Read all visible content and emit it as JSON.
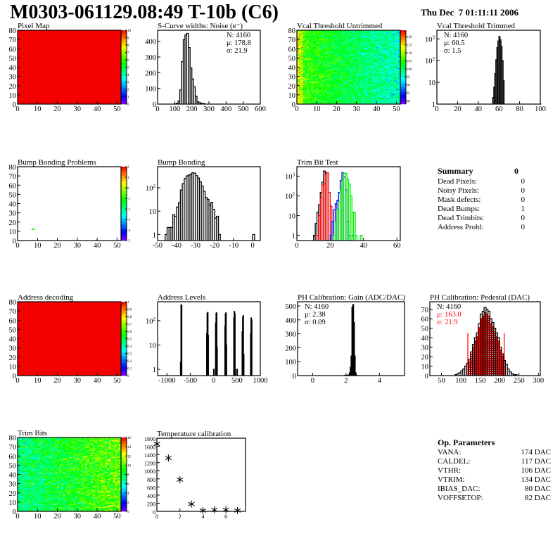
{
  "header": {
    "title": "M0303-061129.08:49 T-10b (C6)",
    "date": "Thu Dec  7 01:11:11 2006"
  },
  "summary": {
    "title": "Summary",
    "total": "0",
    "rows": [
      {
        "label": "Dead Pixels:",
        "value": "0"
      },
      {
        "label": "Noisy Pixels:",
        "value": "0"
      },
      {
        "label": "Mask defects:",
        "value": "0"
      },
      {
        "label": "Dead Bumps:",
        "value": "1"
      },
      {
        "label": "Dead Trimbits:",
        "value": "0"
      },
      {
        "label": "Address Probl:",
        "value": "0"
      }
    ]
  },
  "op_parameters": {
    "title": "Op. Parameters",
    "rows": [
      {
        "label": "VANA:",
        "value": "174 DAC"
      },
      {
        "label": "CALDEL:",
        "value": "117 DAC"
      },
      {
        "label": "VTHR:",
        "value": "106 DAC"
      },
      {
        "label": "VTRIM:",
        "value": "134 DAC"
      },
      {
        "label": "IBIAS_DAC:",
        "value": "80 DAC"
      },
      {
        "label": "VOFFSETOP:",
        "value": "82 DAC"
      }
    ]
  },
  "colors": {
    "palette": "rainbow",
    "trim_series": [
      "#000000",
      "#ff0000",
      "#0000ff",
      "#00ee00"
    ],
    "highlight": "#ff0000"
  },
  "chart_data": [
    {
      "type": "heatmap",
      "title": "Pixel Map",
      "xlim": [
        0,
        52
      ],
      "ylim": [
        0,
        80
      ],
      "zlim": [
        0,
        10
      ],
      "z_uniform": 10,
      "xticks": [
        "0",
        "10",
        "20",
        "30",
        "40",
        "50"
      ],
      "yticks": [
        "0",
        "10",
        "20",
        "30",
        "40",
        "50",
        "60",
        "70",
        "80"
      ],
      "zticks": [
        "0",
        "1",
        "2",
        "3",
        "4",
        "5",
        "6",
        "7",
        "8",
        "9",
        "10"
      ]
    },
    {
      "type": "bar",
      "title": "S-Curve widths: Noise (e⁻)",
      "xlim": [
        0,
        600
      ],
      "ylim": [
        0,
        470
      ],
      "bin_width": 10,
      "xticks": [
        "0",
        "100",
        "200",
        "300",
        "400",
        "500",
        "600"
      ],
      "yticks": [
        "0",
        "100",
        "200",
        "300",
        "400"
      ],
      "stats": [
        "N: 4160",
        "μ: 178.8",
        "σ: 21.9"
      ],
      "stats_pos": "top-right",
      "bins": [
        [
          100,
          2
        ],
        [
          110,
          5
        ],
        [
          120,
          20
        ],
        [
          130,
          90
        ],
        [
          140,
          270
        ],
        [
          150,
          410
        ],
        [
          160,
          440
        ],
        [
          170,
          450
        ],
        [
          180,
          360
        ],
        [
          190,
          230
        ],
        [
          200,
          160
        ],
        [
          210,
          110
        ],
        [
          220,
          50
        ],
        [
          230,
          15
        ],
        [
          240,
          10
        ],
        [
          250,
          5
        ],
        [
          260,
          3
        ],
        [
          270,
          2
        ]
      ]
    },
    {
      "type": "heatmap",
      "title": "Vcal Threshold Untrimmed",
      "xlim": [
        0,
        52
      ],
      "ylim": [
        0,
        80
      ],
      "zlim": [
        78,
        124
      ],
      "xticks": [
        "0",
        "10",
        "20",
        "30",
        "40",
        "50"
      ],
      "yticks": [
        "0",
        "10",
        "20",
        "30",
        "40",
        "50",
        "60",
        "70",
        "80"
      ],
      "zticks": [
        "80",
        "85",
        "90",
        "95",
        "100",
        "105",
        "110",
        "115",
        "120"
      ]
    },
    {
      "type": "bar",
      "title": "Vcal Threshold Trimmed",
      "xlim": [
        0,
        100
      ],
      "ylim": [
        1,
        2500
      ],
      "log_y": true,
      "bin_width": 1,
      "xticks": [
        "0",
        "20",
        "40",
        "60",
        "80",
        "100"
      ],
      "yticks": [
        "1",
        "10",
        "10^2",
        "10^3"
      ],
      "stats": [
        "N: 4160",
        "μ: 60.5",
        "σ:  1.5"
      ],
      "stats_pos": "top-left",
      "bins": [
        [
          54,
          2
        ],
        [
          55,
          6
        ],
        [
          56,
          25
        ],
        [
          57,
          110
        ],
        [
          58,
          400
        ],
        [
          59,
          800
        ],
        [
          60,
          1300
        ],
        [
          61,
          900
        ],
        [
          62,
          450
        ],
        [
          63,
          100
        ],
        [
          64,
          12
        ],
        [
          100,
          1
        ]
      ]
    },
    {
      "type": "heatmap",
      "title": "Bump Bonding Problems",
      "xlim": [
        0,
        52
      ],
      "ylim": [
        0,
        80
      ],
      "zlim": [
        -5,
        2
      ],
      "xticks": [
        "0",
        "10",
        "20",
        "30",
        "40",
        "50"
      ],
      "yticks": [
        "0",
        "10",
        "20",
        "30",
        "40",
        "50",
        "60",
        "70",
        "80"
      ],
      "zticks": [
        "-5",
        "-4",
        "-3",
        "-2",
        "-1",
        "0",
        "1",
        "2"
      ],
      "cells": [
        [
          7,
          12,
          -1
        ]
      ]
    },
    {
      "type": "bar",
      "title": "Bump Bonding",
      "xlim": [
        -50,
        4
      ],
      "ylim": [
        0.55,
        800
      ],
      "log_y": true,
      "bin_width": 1,
      "xticks": [
        "-50",
        "-40",
        "-30",
        "-20",
        "-10",
        "0"
      ],
      "yticks": [
        "1",
        "10",
        "10^2"
      ],
      "bins": [
        [
          -46,
          1
        ],
        [
          -45,
          2
        ],
        [
          -44,
          2
        ],
        [
          -43,
          2
        ],
        [
          -42,
          7
        ],
        [
          -41,
          6
        ],
        [
          -40,
          15
        ],
        [
          -39,
          23
        ],
        [
          -38,
          80
        ],
        [
          -37,
          150
        ],
        [
          -36,
          250
        ],
        [
          -35,
          320
        ],
        [
          -34,
          350
        ],
        [
          -33,
          380
        ],
        [
          -32,
          440
        ],
        [
          -31,
          420
        ],
        [
          -30,
          330
        ],
        [
          -29,
          260
        ],
        [
          -28,
          180
        ],
        [
          -27,
          120
        ],
        [
          -26,
          70
        ],
        [
          -25,
          38
        ],
        [
          -24,
          32
        ],
        [
          -23,
          18
        ],
        [
          -22,
          24
        ],
        [
          -21,
          12
        ],
        [
          -20,
          5
        ],
        [
          -19,
          6
        ],
        [
          -18,
          1
        ],
        [
          0,
          1
        ]
      ]
    },
    {
      "type": "bar",
      "title": "Trim Bit Test",
      "xlim": [
        0,
        62
      ],
      "ylim": [
        0.55,
        3000
      ],
      "log_y": true,
      "bin_width": 1,
      "xticks": [
        "0",
        "20",
        "40",
        "60"
      ],
      "yticks": [
        "1",
        "10",
        "10^2",
        "10^3"
      ],
      "series": [
        {
          "bins": [
            [
              10,
              1
            ],
            [
              11,
              4
            ],
            [
              12,
              15
            ],
            [
              13,
              35
            ],
            [
              14,
              150
            ],
            [
              15,
              500
            ],
            [
              16,
              1800
            ],
            [
              17,
              1500
            ],
            [
              18,
              0
            ]
          ]
        },
        {
          "bins": [
            [
              12,
              1
            ],
            [
              13,
              10
            ],
            [
              14,
              80
            ],
            [
              15,
              350
            ],
            [
              16,
              400
            ],
            [
              17,
              1200
            ],
            [
              18,
              1500
            ],
            [
              19,
              150
            ],
            [
              20,
              30
            ],
            [
              21,
              5
            ]
          ]
        },
        {
          "bins": [
            [
              20,
              1
            ],
            [
              21,
              5
            ],
            [
              22,
              20
            ],
            [
              23,
              40
            ],
            [
              24,
              60
            ],
            [
              25,
              150
            ],
            [
              26,
              600
            ],
            [
              27,
              1500
            ],
            [
              28,
              900
            ],
            [
              29,
              200
            ],
            [
              30,
              5
            ],
            [
              31,
              1
            ],
            [
              32,
              0
            ],
            [
              33,
              1
            ]
          ]
        },
        {
          "bins": [
            [
              22,
              1
            ],
            [
              23,
              5
            ],
            [
              24,
              20
            ],
            [
              25,
              50
            ],
            [
              26,
              200
            ],
            [
              27,
              600
            ],
            [
              28,
              1400
            ],
            [
              29,
              1400
            ],
            [
              30,
              700
            ],
            [
              31,
              400
            ],
            [
              32,
              100
            ],
            [
              33,
              15
            ],
            [
              34,
              15
            ],
            [
              35,
              1
            ],
            [
              38,
              1
            ]
          ]
        }
      ]
    },
    {
      "type": "heatmap",
      "title": "Address decoding",
      "xlim": [
        0,
        52
      ],
      "ylim": [
        0,
        80
      ],
      "zlim": [
        0,
        1
      ],
      "z_uniform": 1,
      "xticks": [
        "0",
        "10",
        "20",
        "30",
        "40",
        "50"
      ],
      "yticks": [
        "0",
        "10",
        "20",
        "30",
        "40",
        "50",
        "60",
        "70",
        "80"
      ],
      "zticks": [
        "0",
        "0.1",
        "0.2",
        "0.3",
        "0.4",
        "0.5",
        "0.6",
        "0.7",
        "0.8",
        "0.9",
        "1"
      ]
    },
    {
      "type": "bar",
      "title": "Address Levels",
      "xlim": [
        -1200,
        1000
      ],
      "ylim": [
        0.55,
        600
      ],
      "log_y": true,
      "bin_width": 10,
      "xticks": [
        "-1000",
        "-500",
        "0",
        "500",
        "1000"
      ],
      "yticks": [
        "1",
        "10",
        "10^2"
      ],
      "bins": [
        [
          -710,
          2
        ],
        [
          -700,
          450
        ],
        [
          -690,
          430
        ],
        [
          -150,
          30
        ],
        [
          -140,
          200
        ],
        [
          -130,
          220
        ],
        [
          -120,
          25
        ],
        [
          0,
          1
        ],
        [
          40,
          80
        ],
        [
          50,
          200
        ],
        [
          60,
          210
        ],
        [
          70,
          8
        ],
        [
          240,
          60
        ],
        [
          250,
          190
        ],
        [
          260,
          210
        ],
        [
          270,
          10
        ],
        [
          430,
          130
        ],
        [
          440,
          240
        ],
        [
          450,
          200
        ],
        [
          460,
          1
        ],
        [
          500,
          1
        ],
        [
          610,
          35
        ],
        [
          620,
          140
        ],
        [
          630,
          160
        ],
        [
          640,
          4
        ],
        [
          790,
          30
        ],
        [
          800,
          130
        ],
        [
          810,
          110
        ]
      ]
    },
    {
      "type": "bar",
      "title": "PH Calibration: Gain (ADC/DAC)",
      "xlim": [
        -0.9,
        5.5
      ],
      "ylim": [
        0,
        530
      ],
      "bin_width": 0.05,
      "xticks": [
        "0",
        "2",
        "4"
      ],
      "yticks": [
        "0",
        "100",
        "200",
        "300",
        "400",
        "500"
      ],
      "stats": [
        "N: 4160",
        "μ: 2.38",
        "σ: 0.09"
      ],
      "stats_pos": "top-left",
      "bins": [
        [
          1.9,
          1
        ],
        [
          2.0,
          2
        ],
        [
          2.1,
          5
        ],
        [
          2.2,
          20
        ],
        [
          2.25,
          60
        ],
        [
          2.3,
          140
        ],
        [
          2.35,
          490
        ],
        [
          2.4,
          510
        ],
        [
          2.45,
          380
        ],
        [
          2.5,
          140
        ],
        [
          2.55,
          20
        ],
        [
          2.6,
          3
        ]
      ]
    },
    {
      "type": "bar",
      "title": "PH Calibration: Pedestal (DAC)",
      "xlim": [
        20,
        305
      ],
      "ylim": [
        0,
        78
      ],
      "bin_width": 5,
      "xticks": [
        "50",
        "100",
        "150",
        "200",
        "250",
        "300"
      ],
      "yticks": [
        "0",
        "10",
        "20",
        "30",
        "40",
        "50",
        "60",
        "70"
      ],
      "stats": [
        "N: 4160",
        "μ: 163.0",
        "σ: 21.9"
      ],
      "stats_pos": "top-left",
      "fit_range": [
        118,
        212
      ],
      "fit_marker_height": 45,
      "bins": [
        [
          85,
          1
        ],
        [
          90,
          2
        ],
        [
          95,
          3
        ],
        [
          100,
          5
        ],
        [
          105,
          7
        ],
        [
          110,
          10
        ],
        [
          115,
          13
        ],
        [
          120,
          17
        ],
        [
          125,
          25
        ],
        [
          130,
          33
        ],
        [
          135,
          40
        ],
        [
          140,
          45
        ],
        [
          145,
          55
        ],
        [
          150,
          65
        ],
        [
          155,
          68
        ],
        [
          160,
          72
        ],
        [
          165,
          70
        ],
        [
          170,
          68
        ],
        [
          175,
          60
        ],
        [
          180,
          56
        ],
        [
          185,
          50
        ],
        [
          190,
          45
        ],
        [
          195,
          40
        ],
        [
          200,
          30
        ],
        [
          205,
          23
        ],
        [
          210,
          16
        ],
        [
          215,
          12
        ],
        [
          220,
          7
        ],
        [
          225,
          4
        ],
        [
          230,
          2
        ],
        [
          235,
          1
        ],
        [
          240,
          1
        ]
      ]
    },
    {
      "type": "heatmap",
      "title": "Trim Bits",
      "xlim": [
        0,
        52
      ],
      "ylim": [
        0,
        80
      ],
      "zlim": [
        0,
        16
      ],
      "xticks": [
        "0",
        "10",
        "20",
        "30",
        "40",
        "50"
      ],
      "yticks": [
        "0",
        "10",
        "20",
        "30",
        "40",
        "50",
        "60",
        "70",
        "80"
      ],
      "zticks": [
        "0",
        "2",
        "4",
        "6",
        "8",
        "10",
        "12",
        "14",
        "16"
      ]
    },
    {
      "type": "scatter",
      "title": "Temperature calibration",
      "xlim": [
        0,
        7.7
      ],
      "ylim": [
        0,
        1800
      ],
      "marker": "asterisk",
      "xticks": [
        "0",
        "2",
        "4",
        "6"
      ],
      "yticks": [
        "0",
        "200",
        "400",
        "600",
        "800",
        "1000",
        "1200",
        "1400",
        "1600",
        "1800"
      ],
      "points": [
        [
          0,
          1660
        ],
        [
          1,
          1310
        ],
        [
          2,
          780
        ],
        [
          3,
          180
        ],
        [
          4,
          20
        ],
        [
          5,
          40
        ],
        [
          6,
          40
        ],
        [
          7,
          20
        ]
      ]
    }
  ]
}
